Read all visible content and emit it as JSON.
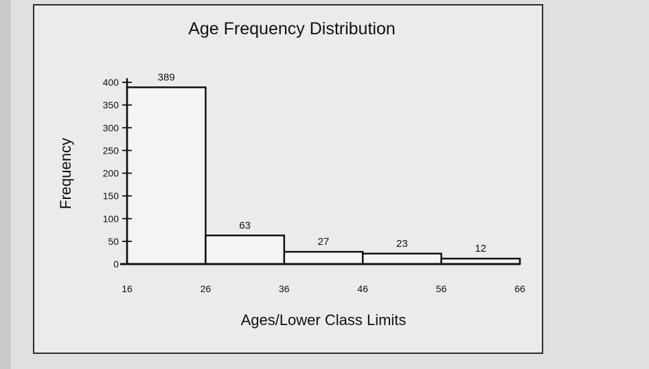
{
  "chart_data": {
    "type": "bar",
    "title": "Age Frequency Distribution",
    "xlabel": "Ages/Lower Class Limits",
    "ylabel": "Frequency",
    "bins": [
      16,
      26,
      36,
      46,
      56,
      66
    ],
    "categories": [
      "16",
      "26",
      "36",
      "46",
      "56"
    ],
    "values": [
      389,
      63,
      27,
      23,
      12
    ],
    "data_labels": [
      "389",
      "63",
      "27",
      "23",
      "12"
    ],
    "x_ticks": [
      "16",
      "26",
      "36",
      "46",
      "56",
      "66"
    ],
    "y_ticks": [
      "0",
      "50",
      "100",
      "150",
      "200",
      "250",
      "300",
      "350",
      "400"
    ],
    "ylim": [
      0,
      400
    ],
    "xlim": [
      16,
      66
    ],
    "grid": false,
    "colors": {
      "bar_fill": "#f4f5f3",
      "bar_stroke": "#111111",
      "background": "#ebecea"
    }
  }
}
